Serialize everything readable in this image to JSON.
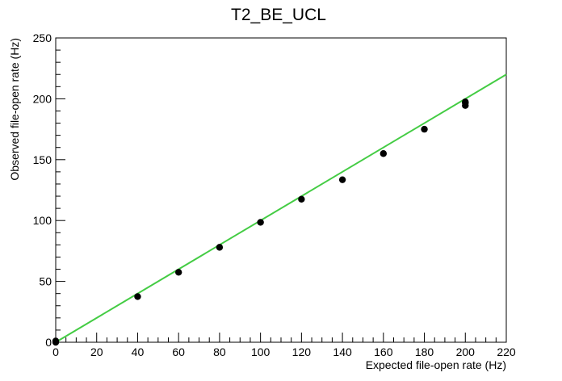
{
  "chart_data": {
    "type": "scatter",
    "title": "T2_BE_UCL",
    "xlabel": "Expected file-open rate (Hz)",
    "ylabel": "Observed file-open rate (Hz)",
    "xlim": [
      0,
      220
    ],
    "ylim": [
      0,
      250
    ],
    "x_ticks": [
      0,
      20,
      40,
      60,
      80,
      100,
      120,
      140,
      160,
      180,
      200,
      220
    ],
    "y_ticks": [
      0,
      50,
      100,
      150,
      200,
      250
    ],
    "grid": false,
    "legend": "none",
    "series": [
      {
        "color": "#000000",
        "points": [
          {
            "x": 0,
            "y": 0
          },
          {
            "x": 0,
            "y": 1
          },
          {
            "x": 40,
            "y": 37.5
          },
          {
            "x": 60,
            "y": 57.5
          },
          {
            "x": 80,
            "y": 78
          },
          {
            "x": 100,
            "y": 98.5
          },
          {
            "x": 120,
            "y": 117.5
          },
          {
            "x": 140,
            "y": 133.5
          },
          {
            "x": 160,
            "y": 155
          },
          {
            "x": 180,
            "y": 175
          },
          {
            "x": 200,
            "y": 194.5
          },
          {
            "x": 200,
            "y": 196.5
          },
          {
            "x": 200,
            "y": 197.5
          }
        ]
      }
    ],
    "reference_line": {
      "color": "#44cc44",
      "x": [
        0,
        220
      ],
      "y": [
        0,
        220
      ]
    }
  }
}
